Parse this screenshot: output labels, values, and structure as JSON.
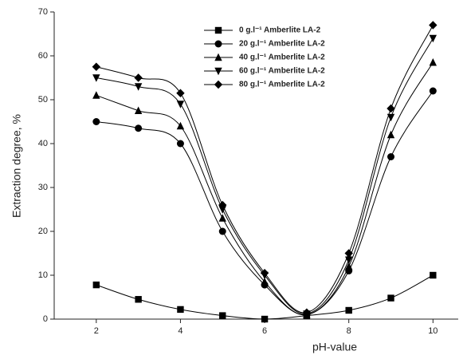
{
  "chart_data": {
    "type": "line",
    "x_label": "pH-value",
    "y_label": "Extraction degree, %",
    "x": [
      2,
      3,
      4,
      5,
      6,
      7,
      8,
      9,
      10
    ],
    "xlim": [
      1,
      10.6
    ],
    "xticks": [
      2,
      4,
      6,
      8,
      10
    ],
    "ylim": [
      0,
      70
    ],
    "yticks": [
      0,
      10,
      20,
      30,
      40,
      50,
      60,
      70
    ],
    "legend": "upper-center",
    "series": [
      {
        "name": "0 g.l⁻¹ Amberlite LA-2",
        "color": "#000000",
        "marker": "square",
        "values": [
          7.8,
          4.5,
          2.2,
          0.8,
          0,
          0.8,
          2,
          4.8,
          10
        ]
      },
      {
        "name": "20 g.l⁻¹ Amberlite LA-2",
        "color": "#000000",
        "marker": "circle",
        "values": [
          45,
          43.5,
          40,
          20,
          7.8,
          1,
          11,
          37,
          52
        ]
      },
      {
        "name": "40 g.l⁻¹ Amberlite LA-2",
        "color": "#000000",
        "marker": "triangle-up",
        "values": [
          51,
          47.5,
          44,
          23,
          8.5,
          1,
          12,
          42,
          58.5
        ]
      },
      {
        "name": "60 g.l⁻¹ Amberlite LA-2",
        "color": "#000000",
        "marker": "triangle-down",
        "values": [
          55,
          53,
          49,
          25,
          10,
          1.2,
          13.5,
          46,
          64
        ]
      },
      {
        "name": "80 g.l⁻¹ Amberlite LA-2",
        "color": "#000000",
        "marker": "diamond",
        "values": [
          57.5,
          55,
          51.5,
          26,
          10.5,
          1.5,
          15,
          48,
          67
        ]
      }
    ]
  }
}
